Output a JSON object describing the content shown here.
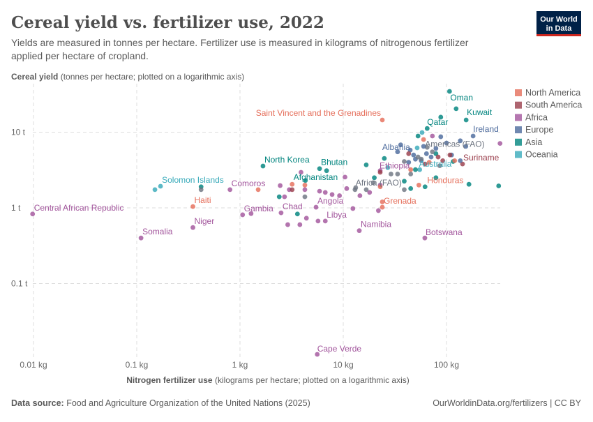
{
  "header": {
    "title": "Cereal yield vs. fertilizer use, 2022",
    "subtitle_line1": "Yields are measured in tonnes per hectare. Fertilizer use is measured in kilograms of nitrogenous fertilizer",
    "subtitle_line2": "applied per hectare of cropland.",
    "logo_line1": "Our World",
    "logo_line2": "in Data"
  },
  "footer": {
    "source_label": "Data source:",
    "source": "Food and Agriculture Organization of the United Nations (2025)",
    "url": "OurWorldinData.org/fertilizers | CC BY"
  },
  "chart_data": {
    "type": "scatter",
    "title": "Cereal yield vs. fertilizer use, 2022",
    "xlabel_bold": "Nitrogen fertilizer use",
    "xlabel": "(kilograms per hectare; plotted on a logarithmic axis)",
    "ylabel_bold": "Cereal yield",
    "ylabel": "(tonnes per hectare; plotted on a logarithmic axis)",
    "xscale": "log",
    "yscale": "log",
    "xlim": [
      0.0098,
      330
    ],
    "ylim": [
      0.011,
      40
    ],
    "grid": true,
    "xticks": [
      {
        "v": 0.01,
        "label": "0.01 kg"
      },
      {
        "v": 0.1,
        "label": "0.1 kg"
      },
      {
        "v": 1,
        "label": "1 kg"
      },
      {
        "v": 10,
        "label": "10 kg"
      },
      {
        "v": 100,
        "label": "100 kg"
      }
    ],
    "yticks": [
      {
        "v": 10,
        "label": "10 t"
      },
      {
        "v": 1,
        "label": "1 t"
      },
      {
        "v": 0.1,
        "label": "0.1 t"
      }
    ],
    "legend_position": "right",
    "legend": [
      {
        "key": "NA",
        "name": "North America",
        "color": "#e56e5a"
      },
      {
        "key": "SA",
        "name": "South America",
        "color": "#9a3e4c"
      },
      {
        "key": "AF",
        "name": "Africa",
        "color": "#a2559c"
      },
      {
        "key": "EU",
        "name": "Europe",
        "color": "#4c6a9c"
      },
      {
        "key": "AS",
        "name": "Asia",
        "color": "#00847e"
      },
      {
        "key": "OC",
        "name": "Oceania",
        "color": "#38aaba"
      }
    ],
    "aggregate_color": "#6e7581",
    "points": [
      {
        "x": 0.0098,
        "y": 0.83,
        "r": "AF",
        "label": "Central African Republic"
      },
      {
        "x": 0.11,
        "y": 0.4,
        "r": "AF",
        "label": "Somalia"
      },
      {
        "x": 0.35,
        "y": 0.55,
        "r": "AF",
        "label": "Niger"
      },
      {
        "x": 0.35,
        "y": 1.04,
        "r": "NA",
        "label": "Haiti"
      },
      {
        "x": 0.17,
        "y": 1.93,
        "r": "OC",
        "label": "Solomon Islands"
      },
      {
        "x": 0.15,
        "y": 1.74,
        "r": "OC"
      },
      {
        "x": 1.06,
        "y": 0.81,
        "r": "AF",
        "label": "Gambia"
      },
      {
        "x": 0.8,
        "y": 1.74,
        "r": "AF",
        "label": "Comoros"
      },
      {
        "x": 2.5,
        "y": 0.86,
        "r": "AF",
        "label": "Chad"
      },
      {
        "x": 1.67,
        "y": 3.57,
        "r": "AS",
        "label": "North Korea"
      },
      {
        "x": 5.9,
        "y": 3.3,
        "r": "AS",
        "label": "Bhutan"
      },
      {
        "x": 6.9,
        "y": 3.1,
        "r": "AS"
      },
      {
        "x": 4.3,
        "y": 2.3,
        "r": "AS",
        "label": "Afghanistan"
      },
      {
        "x": 5.45,
        "y": 1.02,
        "r": "AF",
        "label": "Angola"
      },
      {
        "x": 6.7,
        "y": 0.67,
        "r": "AF",
        "label": "Libya"
      },
      {
        "x": 5.6,
        "y": 0.0116,
        "r": "AF",
        "label": "Cape Verde"
      },
      {
        "x": 14.3,
        "y": 0.5,
        "r": "AF",
        "label": "Namibia"
      },
      {
        "x": 23.9,
        "y": 1.02,
        "r": "NA",
        "label": "Grenada"
      },
      {
        "x": 13.2,
        "y": 1.85,
        "r": "AGG",
        "label": "Africa (FAO)"
      },
      {
        "x": 22.8,
        "y": 3.1,
        "r": "AF",
        "label": "Ethiopia"
      },
      {
        "x": 48,
        "y": 5.0,
        "r": "EU",
        "label": "Albania"
      },
      {
        "x": 23.9,
        "y": 14.5,
        "r": "NA",
        "label": "Saint Vincent and the Grenadines"
      },
      {
        "x": 65,
        "y": 11.2,
        "r": "AS",
        "label": "Qatar"
      },
      {
        "x": 107,
        "y": 34.6,
        "r": "AS",
        "label": "Oman"
      },
      {
        "x": 124,
        "y": 20.4,
        "r": "AS"
      },
      {
        "x": 155,
        "y": 14.5,
        "r": "AS",
        "label": "Kuwait"
      },
      {
        "x": 181,
        "y": 8.9,
        "r": "EU",
        "label": "Ireland"
      },
      {
        "x": 65,
        "y": 6.3,
        "r": "AGG",
        "label": "Americas (FAO)"
      },
      {
        "x": 143,
        "y": 3.8,
        "r": "SA",
        "label": "Suriname"
      },
      {
        "x": 55,
        "y": 3.2,
        "r": "OC",
        "label": "Australia"
      },
      {
        "x": 54,
        "y": 2.0,
        "r": "NA",
        "label": "Honduras"
      },
      {
        "x": 61.7,
        "y": 0.4,
        "r": "AF",
        "label": "Botswana"
      },
      {
        "x": 0.42,
        "y": 1.9,
        "r": "AS"
      },
      {
        "x": 2.4,
        "y": 1.4,
        "r": "AS"
      },
      {
        "x": 3.6,
        "y": 0.83,
        "r": "AS"
      },
      {
        "x": 16.7,
        "y": 3.7,
        "r": "AS"
      },
      {
        "x": 25,
        "y": 4.5,
        "r": "AS"
      },
      {
        "x": 39,
        "y": 2.25,
        "r": "AS"
      },
      {
        "x": 50,
        "y": 3.2,
        "r": "AS"
      },
      {
        "x": 62,
        "y": 1.9,
        "r": "AS"
      },
      {
        "x": 79,
        "y": 2.5,
        "r": "AS"
      },
      {
        "x": 165,
        "y": 2.05,
        "r": "AS"
      },
      {
        "x": 320,
        "y": 1.95,
        "r": "AS"
      },
      {
        "x": 88,
        "y": 15.8,
        "r": "AS"
      },
      {
        "x": 53,
        "y": 8.9,
        "r": "AS"
      },
      {
        "x": 79,
        "y": 5.2,
        "r": "AS"
      },
      {
        "x": 116,
        "y": 4.1,
        "r": "AS"
      },
      {
        "x": 45,
        "y": 1.8,
        "r": "AS"
      },
      {
        "x": 20,
        "y": 2.5,
        "r": "AS"
      },
      {
        "x": 2.45,
        "y": 1.97,
        "r": "AF"
      },
      {
        "x": 3.0,
        "y": 1.74,
        "r": "AF"
      },
      {
        "x": 2.7,
        "y": 1.4,
        "r": "AF"
      },
      {
        "x": 4.25,
        "y": 1.74,
        "r": "AF"
      },
      {
        "x": 5.9,
        "y": 1.66,
        "r": "AF"
      },
      {
        "x": 6.7,
        "y": 1.6,
        "r": "AF"
      },
      {
        "x": 7.8,
        "y": 1.5,
        "r": "AF"
      },
      {
        "x": 9.2,
        "y": 1.45,
        "r": "AF"
      },
      {
        "x": 10.8,
        "y": 1.8,
        "r": "AF"
      },
      {
        "x": 10.4,
        "y": 2.55,
        "r": "AF"
      },
      {
        "x": 3.8,
        "y": 0.6,
        "r": "AF"
      },
      {
        "x": 5.7,
        "y": 0.67,
        "r": "AF"
      },
      {
        "x": 4.4,
        "y": 0.73,
        "r": "AF"
      },
      {
        "x": 12.4,
        "y": 0.98,
        "r": "AF"
      },
      {
        "x": 21.9,
        "y": 0.92,
        "r": "AF"
      },
      {
        "x": 14.5,
        "y": 1.45,
        "r": "AF"
      },
      {
        "x": 18,
        "y": 1.6,
        "r": "AF"
      },
      {
        "x": 73,
        "y": 8.9,
        "r": "AF"
      },
      {
        "x": 330,
        "y": 7.1,
        "r": "AF"
      },
      {
        "x": 1.28,
        "y": 0.84,
        "r": "AF"
      },
      {
        "x": 2.9,
        "y": 0.6,
        "r": "AF"
      },
      {
        "x": 3.9,
        "y": 2.95,
        "r": "AF"
      },
      {
        "x": 22.8,
        "y": 2.0,
        "r": "AF"
      },
      {
        "x": 33.6,
        "y": 5.5,
        "r": "EU"
      },
      {
        "x": 44.5,
        "y": 5.8,
        "r": "EU"
      },
      {
        "x": 60,
        "y": 6.5,
        "r": "EU"
      },
      {
        "x": 79,
        "y": 6.1,
        "r": "EU"
      },
      {
        "x": 100,
        "y": 7.2,
        "r": "EU"
      },
      {
        "x": 136,
        "y": 7.7,
        "r": "EU"
      },
      {
        "x": 154,
        "y": 6.5,
        "r": "EU"
      },
      {
        "x": 71,
        "y": 4.7,
        "r": "EU"
      },
      {
        "x": 50,
        "y": 4.4,
        "r": "EU"
      },
      {
        "x": 88,
        "y": 8.7,
        "r": "EU"
      },
      {
        "x": 36,
        "y": 6.8,
        "r": "EU"
      },
      {
        "x": 57,
        "y": 4.2,
        "r": "EU"
      },
      {
        "x": 64,
        "y": 5.2,
        "r": "EU"
      },
      {
        "x": 112,
        "y": 5.0,
        "r": "EU"
      },
      {
        "x": 136,
        "y": 4.2,
        "r": "EU"
      },
      {
        "x": 43,
        "y": 4.0,
        "r": "EU"
      },
      {
        "x": 22.8,
        "y": 2.95,
        "r": "SA"
      },
      {
        "x": 83,
        "y": 4.7,
        "r": "SA"
      },
      {
        "x": 108,
        "y": 5.0,
        "r": "SA"
      },
      {
        "x": 62,
        "y": 3.8,
        "r": "SA"
      },
      {
        "x": 92,
        "y": 4.2,
        "r": "SA"
      },
      {
        "x": 43,
        "y": 5.2,
        "r": "SA"
      },
      {
        "x": 3.2,
        "y": 1.74,
        "r": "SA"
      },
      {
        "x": 23.9,
        "y": 1.2,
        "r": "NA"
      },
      {
        "x": 1.5,
        "y": 1.74,
        "r": "NA"
      },
      {
        "x": 4.25,
        "y": 2.0,
        "r": "NA"
      },
      {
        "x": 3.2,
        "y": 2.05,
        "r": "NA"
      },
      {
        "x": 60,
        "y": 8.0,
        "r": "NA"
      },
      {
        "x": 45,
        "y": 3.2,
        "r": "NA"
      },
      {
        "x": 68,
        "y": 4.0,
        "r": "NA"
      },
      {
        "x": 120,
        "y": 4.2,
        "r": "NA"
      },
      {
        "x": 22.8,
        "y": 1.9,
        "r": "NA"
      },
      {
        "x": 58,
        "y": 9.9,
        "r": "OC"
      },
      {
        "x": 52,
        "y": 6.2,
        "r": "OC"
      },
      {
        "x": 27,
        "y": 3.4,
        "r": "OC"
      },
      {
        "x": 0.42,
        "y": 1.74,
        "r": "AGG"
      },
      {
        "x": 4.25,
        "y": 1.4,
        "r": "AGG"
      },
      {
        "x": 13,
        "y": 1.74,
        "r": "AGG"
      },
      {
        "x": 19.5,
        "y": 2.15,
        "r": "AGG"
      },
      {
        "x": 29,
        "y": 2.8,
        "r": "AGG"
      },
      {
        "x": 39,
        "y": 4.1,
        "r": "AGG"
      },
      {
        "x": 53,
        "y": 4.7,
        "r": "AGG"
      },
      {
        "x": 73,
        "y": 5.5,
        "r": "AGG"
      },
      {
        "x": 45,
        "y": 2.8,
        "r": "AGG"
      },
      {
        "x": 39,
        "y": 1.74,
        "r": "AGG"
      },
      {
        "x": 57,
        "y": 4.4,
        "r": "AGG"
      },
      {
        "x": 86,
        "y": 3.6,
        "r": "AGG"
      },
      {
        "x": 33.6,
        "y": 2.8,
        "r": "AGG"
      },
      {
        "x": 16.7,
        "y": 1.74,
        "r": "AGG"
      }
    ]
  }
}
